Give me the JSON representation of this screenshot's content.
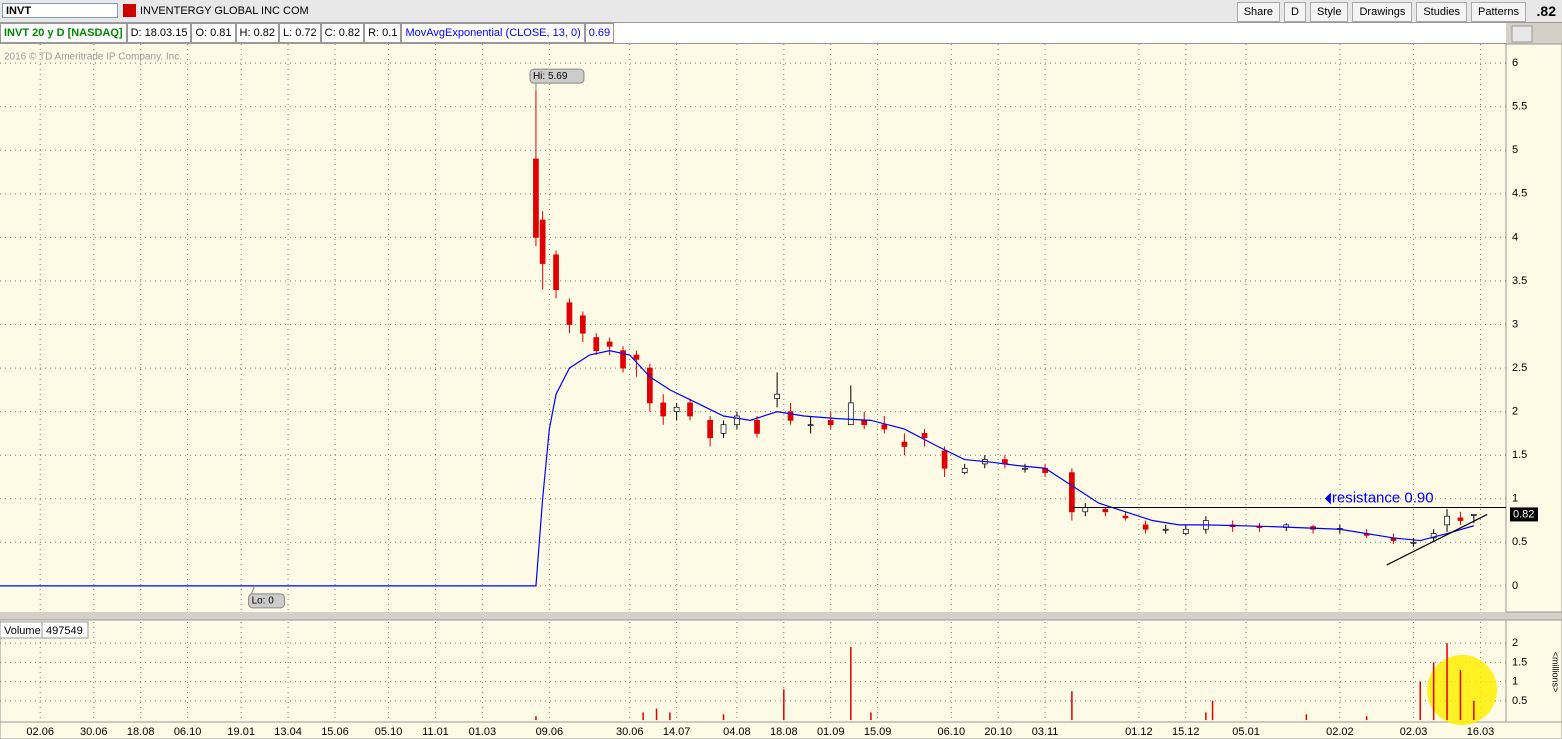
{
  "toolbar": {
    "symbol": "INVT",
    "company": "INVENTERGY GLOBAL INC COM",
    "buttons": [
      "Share",
      "D",
      "Style",
      "Drawings",
      "Studies",
      "Patterns"
    ],
    "price": ".82"
  },
  "info": {
    "fields": [
      "D: 18.03.15",
      "O: 0.81",
      "H: 0.82",
      "L: 0.72",
      "C: 0.82",
      "R: 0.1"
    ],
    "ema_value": "0.69",
    "copyright": "2016 © TD Ameritrade IP Company, Inc."
  },
  "chart_data": [
    {
      "type": "candlestick",
      "title": "INVT 20 y D [NASDAQ]",
      "x": [
        80,
        81,
        83,
        85,
        87,
        89,
        91,
        93,
        95,
        97,
        99,
        101,
        103,
        106,
        108,
        110,
        113,
        116,
        118,
        121,
        124,
        127,
        129,
        132,
        135,
        138,
        141,
        144,
        147,
        150,
        153,
        156,
        160,
        162,
        165,
        168,
        171,
        174,
        177,
        180,
        184,
        188,
        192,
        196,
        200,
        204,
        208,
        211,
        214,
        216,
        218,
        220
      ],
      "open": [
        4.9,
        4.2,
        3.8,
        3.25,
        3.1,
        2.85,
        2.8,
        2.7,
        2.65,
        2.5,
        2.1,
        2.0,
        2.1,
        1.9,
        1.75,
        1.85,
        1.9,
        2.15,
        2.0,
        1.85,
        1.9,
        1.85,
        1.9,
        1.85,
        1.65,
        1.75,
        1.55,
        1.3,
        1.4,
        1.45,
        1.35,
        1.35,
        1.3,
        0.85,
        0.88,
        0.8,
        0.7,
        0.65,
        0.6,
        0.65,
        0.7,
        0.68,
        0.67,
        0.68,
        0.65,
        0.6,
        0.55,
        0.5,
        0.55,
        0.7,
        0.78,
        0.81
      ],
      "high": [
        5.69,
        4.3,
        3.85,
        3.3,
        3.15,
        2.9,
        2.85,
        2.75,
        2.7,
        2.55,
        2.2,
        2.1,
        2.15,
        1.95,
        1.9,
        2.0,
        1.95,
        2.45,
        2.1,
        1.95,
        2.0,
        2.3,
        2.0,
        1.95,
        1.75,
        1.8,
        1.6,
        1.4,
        1.5,
        1.5,
        1.4,
        1.4,
        1.35,
        0.95,
        0.9,
        0.85,
        0.75,
        0.7,
        0.7,
        0.8,
        0.75,
        0.72,
        0.72,
        0.7,
        0.7,
        0.65,
        0.6,
        0.55,
        0.65,
        0.88,
        0.85,
        0.82
      ],
      "low": [
        3.9,
        3.4,
        3.3,
        2.9,
        2.8,
        2.65,
        2.65,
        2.45,
        2.4,
        2.0,
        1.85,
        1.9,
        1.9,
        1.6,
        1.7,
        1.8,
        1.7,
        2.05,
        1.85,
        1.75,
        1.8,
        1.85,
        1.8,
        1.75,
        1.5,
        1.6,
        1.25,
        1.28,
        1.35,
        1.35,
        1.3,
        1.25,
        0.75,
        0.8,
        0.8,
        0.75,
        0.6,
        0.6,
        0.58,
        0.6,
        0.62,
        0.62,
        0.63,
        0.6,
        0.6,
        0.55,
        0.48,
        0.45,
        0.5,
        0.62,
        0.7,
        0.72
      ],
      "close": [
        4.0,
        3.7,
        3.4,
        3.0,
        2.9,
        2.7,
        2.75,
        2.5,
        2.6,
        2.1,
        1.95,
        2.05,
        1.95,
        1.7,
        1.85,
        1.95,
        1.75,
        2.2,
        1.9,
        1.85,
        1.85,
        2.1,
        1.85,
        1.8,
        1.6,
        1.7,
        1.35,
        1.35,
        1.45,
        1.4,
        1.35,
        1.3,
        0.85,
        0.9,
        0.85,
        0.78,
        0.65,
        0.65,
        0.65,
        0.75,
        0.68,
        0.67,
        0.7,
        0.65,
        0.66,
        0.58,
        0.52,
        0.5,
        0.6,
        0.8,
        0.75,
        0.82
      ],
      "up_color": "#ffffff",
      "down_color": "#e00000",
      "series": [
        {
          "name": "MovAvgExponential (CLOSE, 13, 0)",
          "color": "#0000ff",
          "x": [
            0,
            80,
            81,
            82,
            83,
            85,
            88,
            91,
            94,
            97,
            100,
            104,
            108,
            112,
            116,
            120,
            125,
            130,
            135,
            140,
            144,
            148,
            152,
            156,
            160,
            164,
            168,
            172,
            176,
            180,
            190,
            200,
            208,
            212,
            216,
            220
          ],
          "values": [
            0,
            0,
            1.0,
            1.8,
            2.2,
            2.5,
            2.65,
            2.7,
            2.65,
            2.4,
            2.25,
            2.1,
            1.95,
            1.9,
            2.0,
            1.95,
            1.92,
            1.9,
            1.8,
            1.6,
            1.45,
            1.42,
            1.38,
            1.35,
            1.15,
            0.95,
            0.85,
            0.75,
            0.7,
            0.7,
            0.68,
            0.65,
            0.55,
            0.52,
            0.6,
            0.69
          ]
        }
      ],
      "xlim": [
        0,
        224.8
      ],
      "ylim": [
        -0.3,
        6.22
      ],
      "xticks": [
        {
          "value": 6,
          "label": "02.06"
        },
        {
          "value": 14,
          "label": "30.06"
        },
        {
          "value": 21,
          "label": "18.08"
        },
        {
          "value": 28,
          "label": "06.10"
        },
        {
          "value": 36,
          "label": "19.01"
        },
        {
          "value": 43,
          "label": "13.04"
        },
        {
          "value": 50,
          "label": "15.06"
        },
        {
          "value": 58,
          "label": "05.10"
        },
        {
          "value": 65,
          "label": "11.01"
        },
        {
          "value": 72,
          "label": "01.03"
        },
        {
          "value": 82,
          "label": "09.06"
        },
        {
          "value": 94,
          "label": "30.06"
        },
        {
          "value": 101,
          "label": "14.07"
        },
        {
          "value": 110,
          "label": "04.08"
        },
        {
          "value": 117,
          "label": "18.08"
        },
        {
          "value": 124,
          "label": "01.09"
        },
        {
          "value": 131,
          "label": "15.09"
        },
        {
          "value": 142,
          "label": "06.10"
        },
        {
          "value": 149,
          "label": "20.10"
        },
        {
          "value": 156,
          "label": "03.11"
        },
        {
          "value": 170,
          "label": "01.12"
        },
        {
          "value": 177,
          "label": "15.12"
        },
        {
          "value": 186,
          "label": "05.01"
        },
        {
          "value": 200,
          "label": "02.02"
        },
        {
          "value": 211,
          "label": "02.03"
        },
        {
          "value": 221,
          "label": "16.03"
        }
      ],
      "yticks": [
        0,
        0.5,
        1,
        1.5,
        2,
        2.5,
        3,
        3.5,
        4,
        4.5,
        5,
        5.5,
        6
      ],
      "grid": true,
      "annotations": [
        {
          "text": "Hi: 5.69",
          "x": 80,
          "y": 5.69
        },
        {
          "text": "Lo: 0",
          "x": 38,
          "y": 0
        }
      ],
      "resistance": {
        "label": "resistance 0.90",
        "value": 0.9,
        "x": [
          160,
          224.8
        ]
      },
      "trendline": {
        "x": [
          207,
          222
        ],
        "y": [
          0.24,
          0.82
        ]
      },
      "last_price": {
        "value": 0.82,
        "label": "0.82"
      }
    },
    {
      "type": "bar",
      "title": "Volume",
      "subtitle": "497549",
      "y_label": "<millions>",
      "x": [
        80,
        96,
        98,
        100,
        108,
        117,
        127,
        130,
        160,
        180,
        181,
        195,
        204,
        212,
        214,
        216,
        218,
        220
      ],
      "values": [
        0.1,
        0.2,
        0.3,
        0.2,
        0.15,
        0.8,
        1.9,
        0.2,
        0.75,
        0.2,
        0.5,
        0.15,
        0.1,
        1.0,
        1.5,
        2.0,
        1.3,
        0.5
      ],
      "color": "#e00000",
      "xlim": [
        0,
        224.8
      ],
      "ylim": [
        -0.05,
        2.55
      ],
      "yticks": [
        0.5,
        1,
        1.5,
        2
      ],
      "grid": true
    }
  ]
}
